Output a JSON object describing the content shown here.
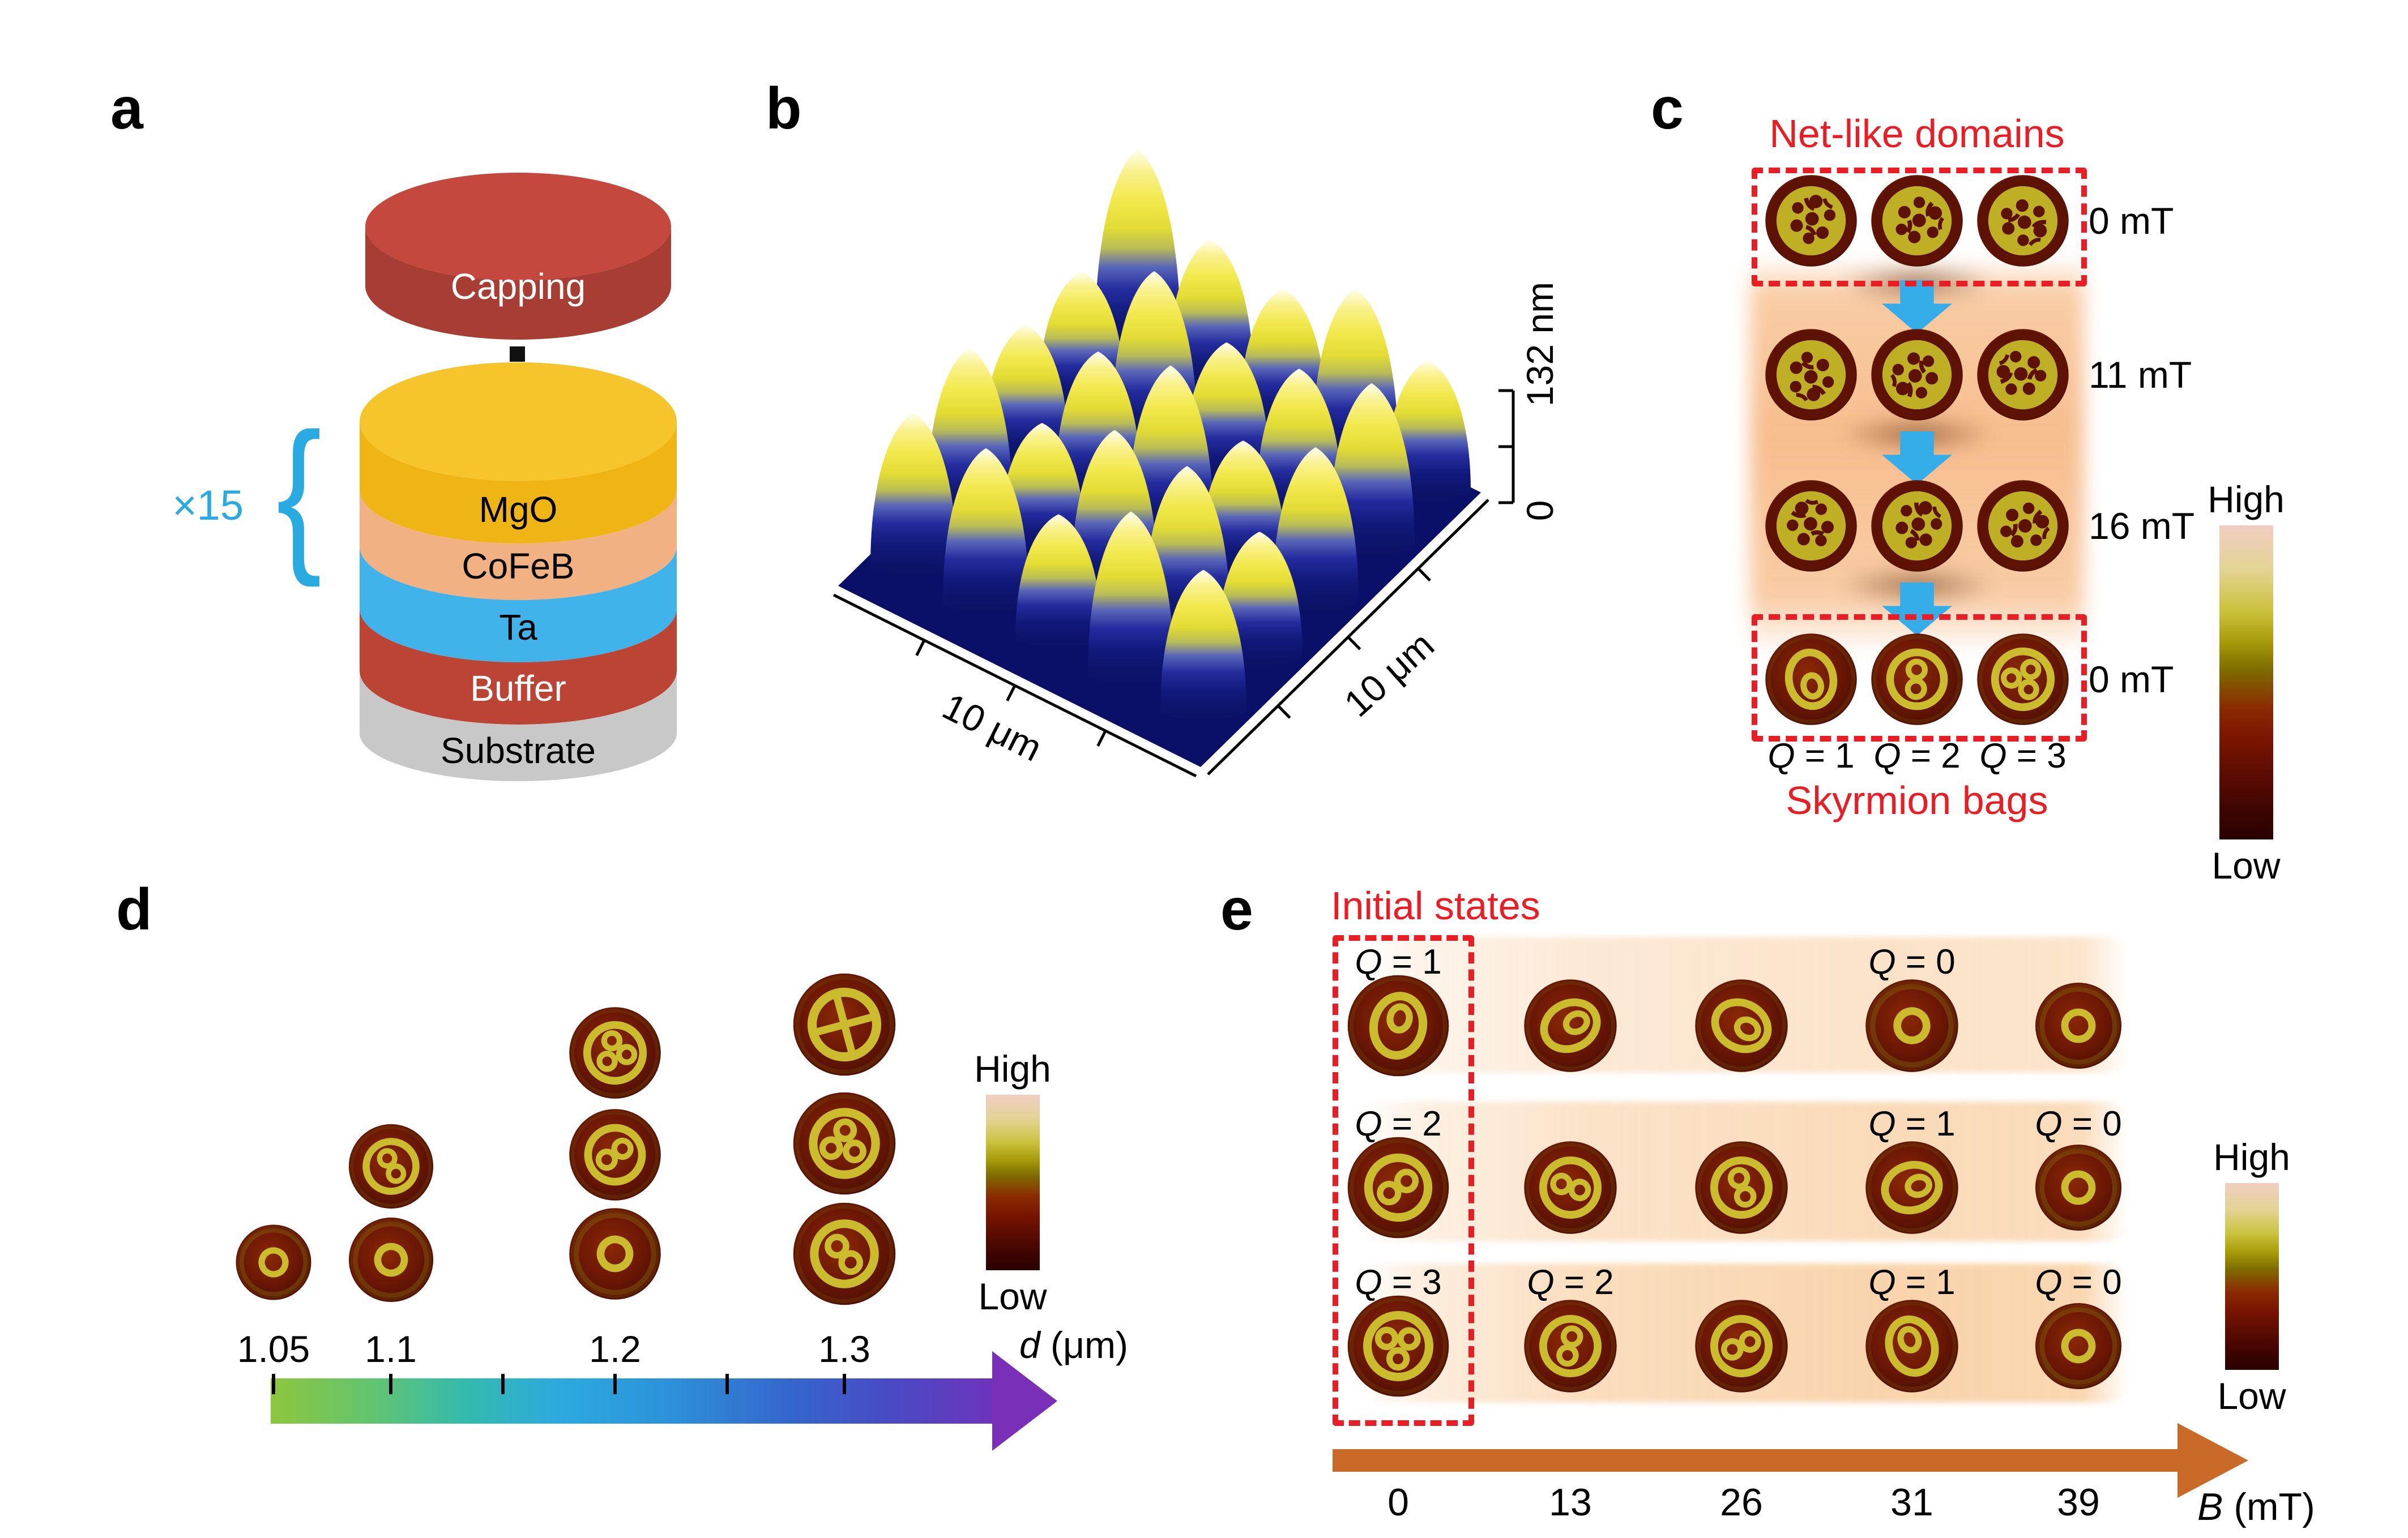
{
  "figure": {
    "panels": {
      "a": {
        "label": "a",
        "multiplier": "×15",
        "layers": [
          {
            "name": "Capping",
            "color": "#C4483D",
            "text_color": "#FFFFFF"
          },
          {
            "name": "MgO",
            "color": "#EFB515",
            "text_color": "#000000"
          },
          {
            "name": "CoFeB",
            "color": "#F2B183",
            "text_color": "#000000"
          },
          {
            "name": "Ta",
            "color": "#3FB3EA",
            "text_color": "#000000"
          },
          {
            "name": "Buffer",
            "color": "#BC4434",
            "text_color": "#FFFFFF"
          },
          {
            "name": "Substrate",
            "color": "#C8C8C8",
            "text_color": "#000000"
          }
        ]
      },
      "b": {
        "label": "b",
        "x_axis_label": "10 μm",
        "y_axis_label": "10 μm",
        "z_max_label": "132 nm",
        "z_min_label": "0"
      },
      "c": {
        "label": "c",
        "title": "Net-like domains",
        "footer": "Skyrmion bags",
        "rows": [
          {
            "field_label": "0 mT",
            "disk_types": [
              "net-like",
              "net-like",
              "net-like"
            ],
            "boxed": true
          },
          {
            "field_label": "11 mT",
            "disk_types": [
              "net-like",
              "net-like",
              "net-like"
            ],
            "boxed": false
          },
          {
            "field_label": "16 mT",
            "disk_types": [
              "net-like",
              "net-like",
              "net-like"
            ],
            "boxed": false
          },
          {
            "field_label": "0 mT",
            "disk_types": [
              "bag-q1",
              "bag-q2",
              "bag-q3"
            ],
            "boxed": true
          }
        ],
        "q_labels": [
          "Q = 1",
          "Q = 2",
          "Q = 3"
        ],
        "colorbar": {
          "high": "High",
          "low": "Low"
        }
      },
      "d": {
        "label": "d",
        "axis_label": "d (μm)",
        "axis_tick_labels": [
          "1.05",
          "1.1",
          "1.2",
          "1.3"
        ],
        "columns": [
          {
            "diameter": "1.05",
            "disk_types": [
              "skyrmion-ring"
            ]
          },
          {
            "diameter": "1.1",
            "disk_types": [
              "bag-q2",
              "skyrmion-ring"
            ]
          },
          {
            "diameter": "1.2",
            "disk_types": [
              "bag-q3",
              "bag-q2",
              "skyrmion-ring"
            ]
          },
          {
            "diameter": "1.3",
            "disk_types": [
              "bag-q4",
              "bag-q3",
              "bag-q2"
            ]
          }
        ],
        "colorbar": {
          "high": "High",
          "low": "Low"
        }
      },
      "e": {
        "label": "e",
        "title": "Initial states",
        "axis_label": "B (mT)",
        "axis_tick_labels": [
          "0",
          "13",
          "26",
          "31",
          "39"
        ],
        "rows": [
          {
            "disk_types": [
              "bag-q1",
              "bag-q1",
              "bag-q1",
              "skyrmion-ring",
              "skyrmion-ring"
            ],
            "q_labels": [
              {
                "col": 0,
                "text": "Q = 1"
              },
              {
                "col": 3,
                "text": "Q = 0"
              }
            ]
          },
          {
            "disk_types": [
              "bag-q2",
              "bag-q2",
              "bag-q2",
              "bag-q1",
              "skyrmion-ring"
            ],
            "q_labels": [
              {
                "col": 0,
                "text": "Q = 2"
              },
              {
                "col": 3,
                "text": "Q = 1"
              },
              {
                "col": 4,
                "text": "Q = 0"
              }
            ]
          },
          {
            "disk_types": [
              "bag-q3",
              "bag-q2",
              "bag-q2",
              "bag-q1",
              "skyrmion-ring"
            ],
            "q_labels": [
              {
                "col": 0,
                "text": "Q = 3"
              },
              {
                "col": 1,
                "text": "Q = 2"
              },
              {
                "col": 3,
                "text": "Q = 1"
              },
              {
                "col": 4,
                "text": "Q = 0"
              }
            ]
          }
        ],
        "colorbar": {
          "high": "High",
          "low": "Low"
        }
      }
    },
    "colors": {
      "annotation_red": "#EC1C24",
      "arrow_blue": "#35ADE9",
      "brace_cyan": "#29ABE2",
      "b_axis_orange": "#C96A28",
      "d_axis_purple": "#7A2FB8"
    }
  }
}
